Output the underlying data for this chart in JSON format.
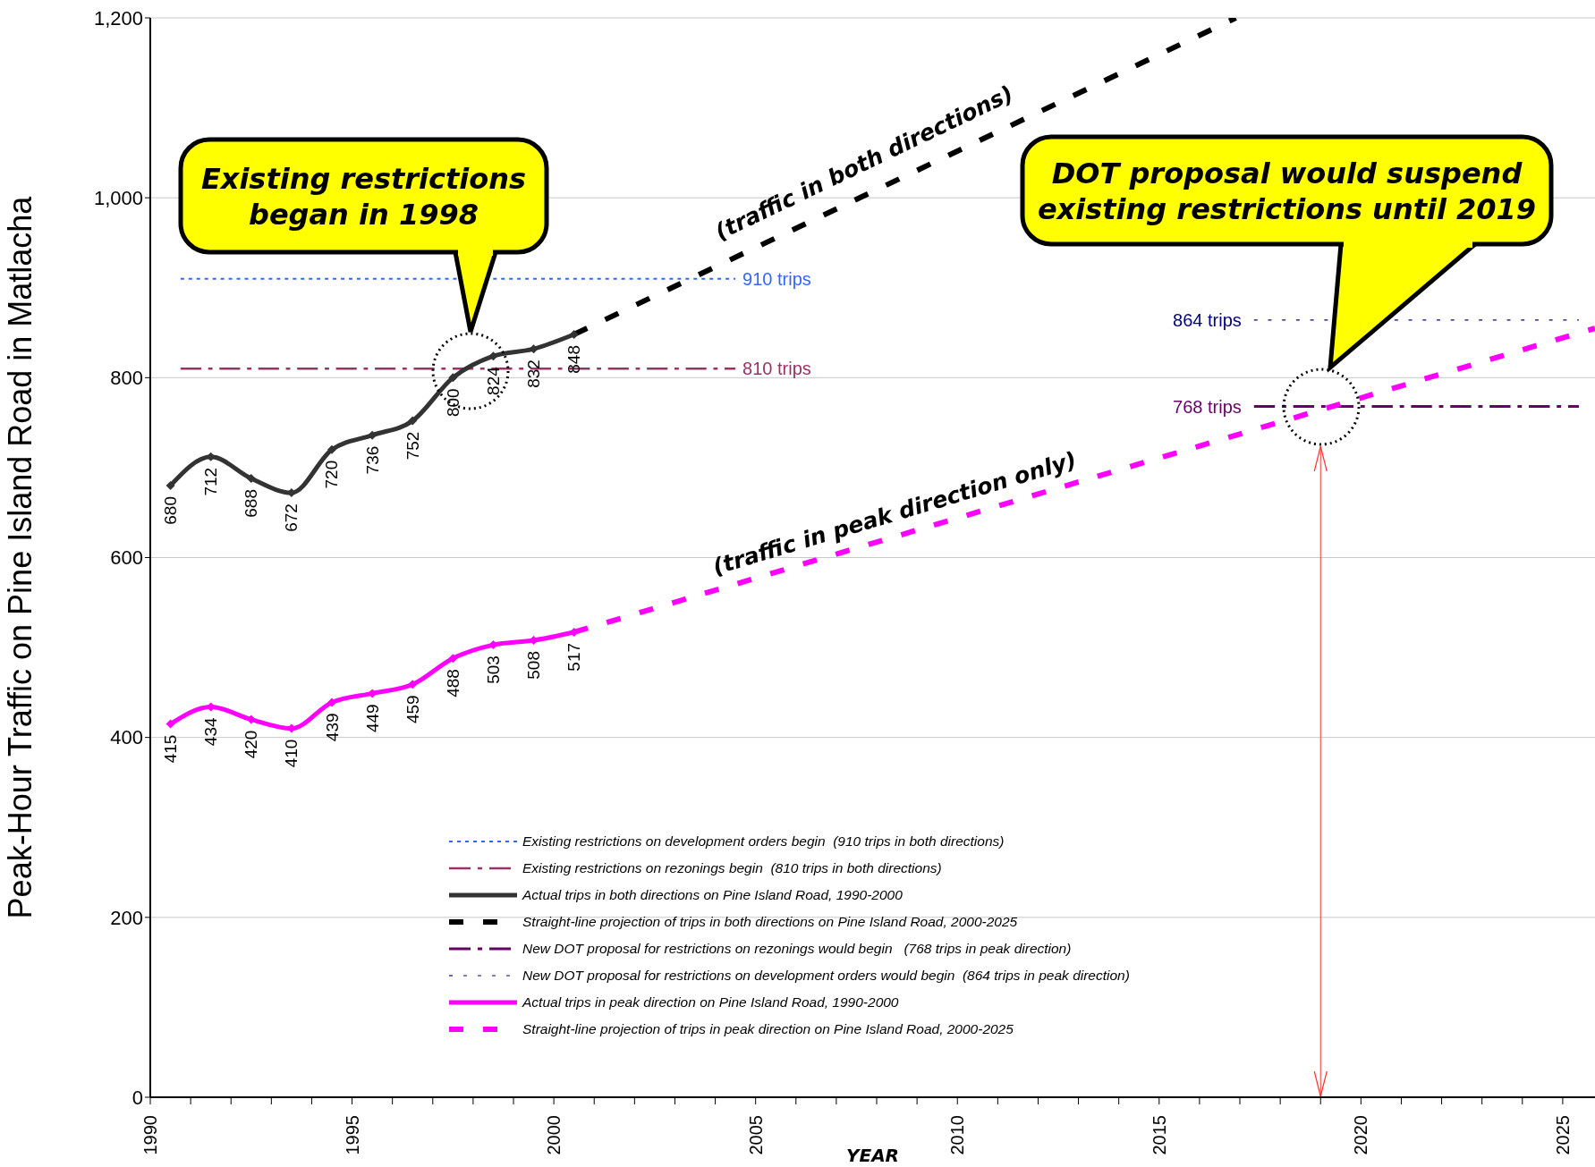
{
  "chart_data": {
    "type": "line",
    "xlabel": "YEAR",
    "ylabel": "Peak-Hour Traffic on Pine Island Road in Matlacha",
    "xlim": [
      1990,
      2025.8
    ],
    "xticks": [
      1990,
      {
        "value": 1991,
        "label": null
      },
      {
        "value": 1992,
        "label": null
      },
      {
        "value": 1993,
        "label": null
      },
      {
        "value": 1994,
        "label": null
      },
      1995,
      {
        "value": 1996,
        "label": null
      },
      {
        "value": 1997,
        "label": null
      },
      {
        "value": 1998,
        "label": null
      },
      {
        "value": 1999,
        "label": null
      },
      2000,
      {
        "value": 2001,
        "label": null
      },
      {
        "value": 2002,
        "label": null
      },
      {
        "value": 2003,
        "label": null
      },
      {
        "value": 2004,
        "label": null
      },
      2005,
      {
        "value": 2006,
        "label": null
      },
      {
        "value": 2007,
        "label": null
      },
      {
        "value": 2008,
        "label": null
      },
      {
        "value": 2009,
        "label": null
      },
      2010,
      {
        "value": 2011,
        "label": null
      },
      {
        "value": 2012,
        "label": null
      },
      {
        "value": 2013,
        "label": null
      },
      {
        "value": 2014,
        "label": null
      },
      2015,
      {
        "value": 2016,
        "label": null
      },
      {
        "value": 2017,
        "label": null
      },
      {
        "value": 2018,
        "label": null
      },
      {
        "value": 2019,
        "label": null
      },
      2020,
      {
        "value": 2021,
        "label": null
      },
      {
        "value": 2022,
        "label": null
      },
      {
        "value": 2023,
        "label": null
      },
      {
        "value": 2024,
        "label": null
      },
      2025
    ],
    "ylim": [
      0,
      1200
    ],
    "yticks": [
      0,
      200,
      400,
      600,
      800,
      {
        "value": 1000,
        "label": "1,000"
      },
      {
        "value": 1200,
        "label": "1,200"
      }
    ],
    "grid": "y",
    "legend": "bottom",
    "ref_lines": [
      {
        "axis": "x",
        "value": 2019,
        "color": "#ff3333"
      }
    ],
    "series": [
      {
        "name": "Existing restrictions on development orders begin  (910 trips in both directions)",
        "color": "#3366ff",
        "line_style": "dotted",
        "x": [
          1990.75,
          2004.5
        ],
        "values": [
          910,
          910
        ]
      },
      {
        "name": "Existing restrictions on rezonings begin  (810 trips in both directions)",
        "color": "#993366",
        "line_style": "dashed",
        "x": [
          1990.75,
          2004.5
        ],
        "values": [
          810,
          810
        ]
      },
      {
        "name": "Actual trips in both directions on Pine Island Road, 1990-2000",
        "color": "#333333",
        "line_style": "solid",
        "marker": "diamond",
        "data_labels": true,
        "x": [
          1990.5,
          1991.5,
          1992.5,
          1993.5,
          1994.5,
          1995.5,
          1996.5,
          1997.5,
          1998.5,
          1999.5,
          2000.5
        ],
        "values": [
          680,
          712,
          688,
          672,
          720,
          736,
          752,
          800,
          824,
          832,
          848
        ]
      },
      {
        "name": "Straight-line projection of trips in both directions on Pine Island Road, 2000-2025",
        "color": "#000000",
        "line_style": "dashed",
        "x": [
          2000.5,
          2016.9
        ],
        "values": [
          848,
          1200
        ]
      },
      {
        "name": "New DOT proposal for restrictions on rezonings would begin   (768 trips in peak direction)",
        "color": "#660066",
        "line_style": "dashed",
        "x": [
          2017.35,
          2025.4
        ],
        "values": [
          768,
          768
        ]
      },
      {
        "name": "New DOT proposal for restrictions on development orders would begin  (864 trips in peak direction)",
        "color": "#000080",
        "line_style": "dotted",
        "x": [
          2017.35,
          2025.4
        ],
        "values": [
          864,
          864
        ]
      },
      {
        "name": "Actual trips in peak direction on Pine Island Road, 1990-2000",
        "color": "#ff00ff",
        "line_style": "solid",
        "marker": "diamond",
        "data_labels": true,
        "x": [
          1990.5,
          1991.5,
          1992.5,
          1993.5,
          1994.5,
          1995.5,
          1996.5,
          1997.5,
          1998.5,
          1999.5,
          2000.5
        ],
        "values": [
          415,
          434,
          420,
          410,
          439,
          449,
          459,
          488,
          503,
          508,
          517
        ]
      },
      {
        "name": "Straight-line projection of trips in peak direction on Pine Island Road, 2000-2025",
        "color": "#ff00ff",
        "line_style": "dashed",
        "x": [
          2000.5,
          2025.8
        ],
        "values": [
          517,
          855
        ]
      }
    ],
    "annotations": [
      "Existing restrictions began in 1998",
      "DOT proposal would suspend existing restrictions until 2019",
      "(traffic in both directions)",
      "(traffic in peak direction only)",
      "910 trips",
      "810 trips",
      "864 trips",
      "768 trips"
    ]
  }
}
